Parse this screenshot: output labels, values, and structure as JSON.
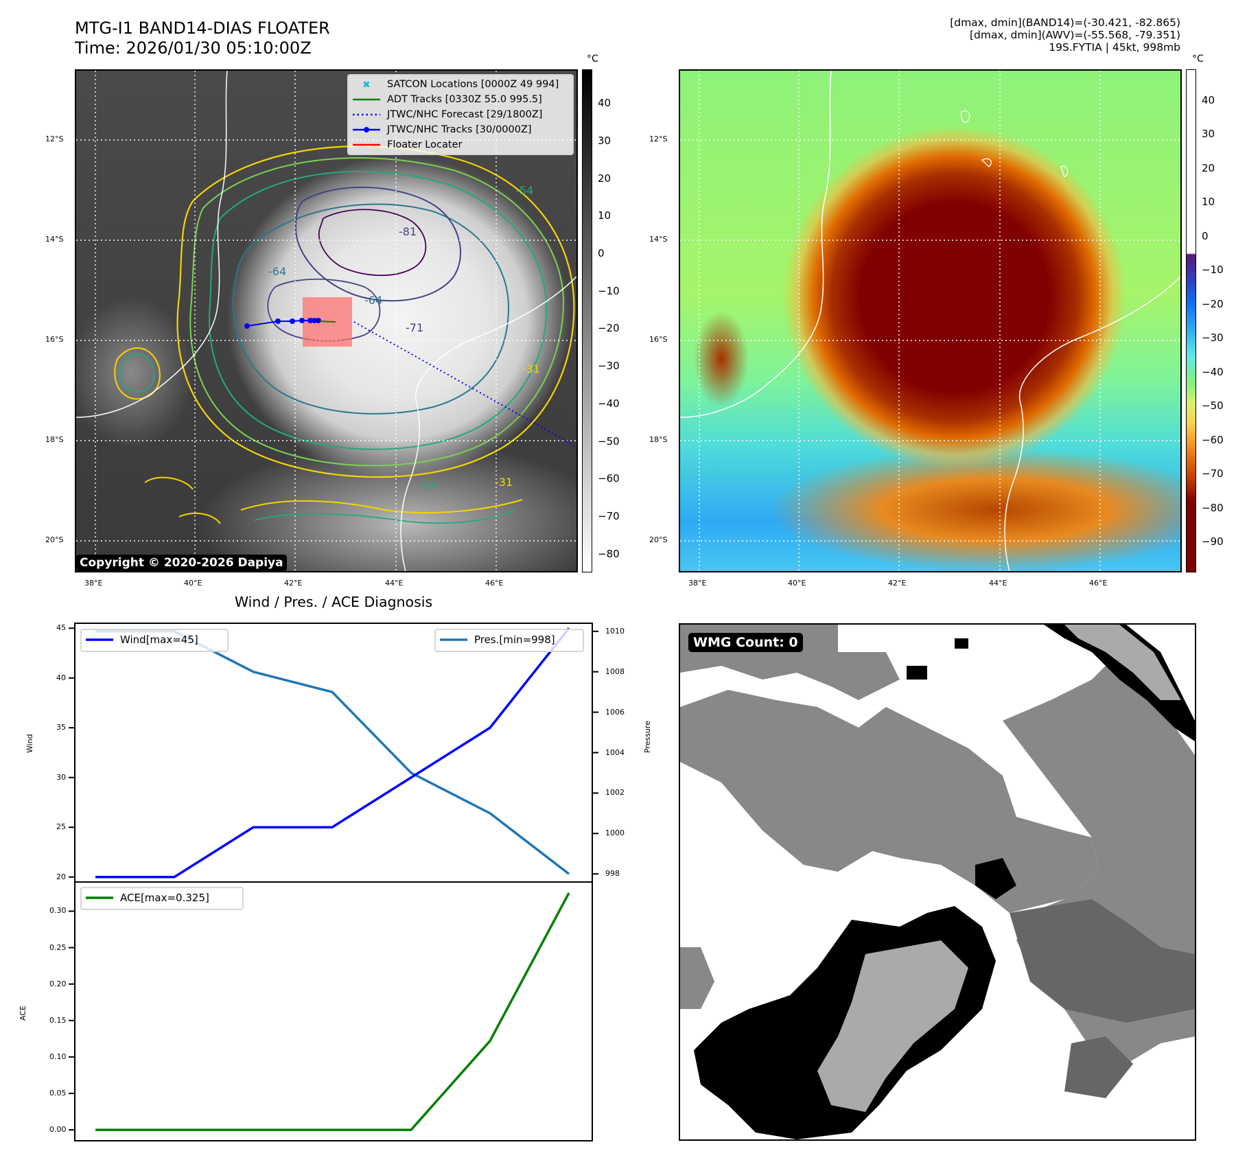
{
  "header": {
    "title_line1": "MTG-I1 BAND14-DIAS FLOATER",
    "title_line2": "Time: 2026/01/30 05:10:00Z",
    "info_line1": "[dmax, dmin](BAND14)=(-30.421, -82.865)",
    "info_line2": "[dmax, dmin](AWV)=(-55.568, -79.351)",
    "info_line3": "19S.FYTIA | 45kt, 998mb"
  },
  "maps": {
    "lat_labels": [
      "12°S",
      "14°S",
      "16°S",
      "18°S",
      "20°S"
    ],
    "lon_labels": [
      "38°E",
      "40°E",
      "42°E",
      "44°E",
      "46°E"
    ],
    "copyright": "Copyright © 2020-2026 Dapiya",
    "contour_labels": [
      "-81",
      "-64",
      "-54",
      "-31",
      "-71",
      "-64",
      "-54",
      "-31"
    ],
    "left_colorbar": {
      "unit": "°C",
      "ticks": [
        "40",
        "30",
        "20",
        "10",
        "0",
        "−10",
        "−20",
        "−30",
        "−40",
        "−50",
        "−60",
        "−70",
        "−80"
      ]
    },
    "right_colorbar": {
      "unit": "°C",
      "ticks": [
        "40",
        "30",
        "20",
        "10",
        "0",
        "−10",
        "−20",
        "−30",
        "−40",
        "−50",
        "−60",
        "−70",
        "−80",
        "−90"
      ]
    },
    "legend": [
      {
        "label": "SATCON Locations [0000Z 49 994]",
        "color": "#17becf",
        "style": "x-marker"
      },
      {
        "label": "ADT Tracks [0330Z 55.0 995.5]",
        "color": "#008000",
        "style": "solid"
      },
      {
        "label": "JTWC/NHC Forecast [29/1800Z]",
        "color": "#0000ff",
        "style": "dotted"
      },
      {
        "label": "JTWC/NHC Tracks [30/0000Z]",
        "color": "#0000ff",
        "style": "line-dot"
      },
      {
        "label": "Floater Locater",
        "color": "#ff0000",
        "style": "solid"
      }
    ]
  },
  "diagnosis": {
    "title": "Wind / Pres. / ACE Diagnosis"
  },
  "wmg": {
    "badge": "WMG Count: 0"
  },
  "chart_data": [
    {
      "type": "line",
      "title": "Wind / Pres. / ACE Diagnosis",
      "ylabel": "Wind",
      "y2label": "Pressure",
      "x": [
        0,
        1,
        2,
        3,
        4,
        5,
        6
      ],
      "ylim": [
        19.5,
        45.5
      ],
      "y2lim": [
        997.6,
        1010.4
      ],
      "yticks": [
        "45",
        "40",
        "35",
        "30",
        "25",
        "20"
      ],
      "y2ticks": [
        "1010",
        "1008",
        "1006",
        "1004",
        "1002",
        "1000",
        "998"
      ],
      "series": [
        {
          "name": "Wind[max=45]",
          "axis": "left",
          "color": "#0000ff",
          "values": [
            20,
            20,
            25,
            25,
            30,
            35,
            45
          ]
        },
        {
          "name": "Pres.[min=998]",
          "axis": "right",
          "color": "#1f77b4",
          "values": [
            1010,
            1010,
            1008,
            1007,
            1003,
            1001,
            998
          ]
        }
      ],
      "legend_position": [
        "upper-left",
        "upper-right"
      ]
    },
    {
      "type": "line",
      "ylabel": "ACE",
      "x": [
        0,
        1,
        2,
        3,
        4,
        5,
        6
      ],
      "ylim": [
        -0.015,
        0.34
      ],
      "yticks": [
        "0.30",
        "0.25",
        "0.20",
        "0.15",
        "0.10",
        "0.05",
        "0.00"
      ],
      "series": [
        {
          "name": "ACE[max=0.325]",
          "color": "#008000",
          "values": [
            0,
            0,
            0,
            0,
            0,
            0.122,
            0.325
          ]
        }
      ],
      "legend_position": "upper-left"
    }
  ]
}
